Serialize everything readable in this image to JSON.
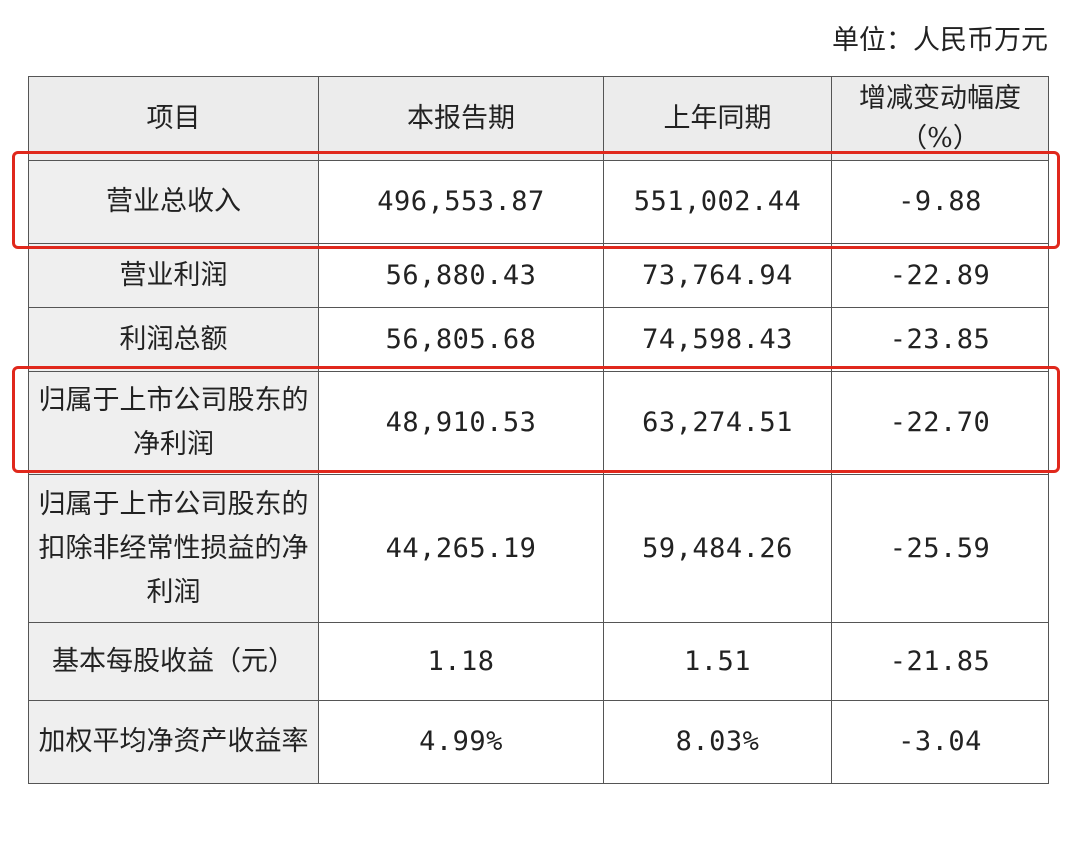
{
  "unit_label": "单位：人民币万元",
  "columns": [
    "项目",
    "本报告期",
    "上年同期",
    "增减变动幅度（%）"
  ],
  "rows": [
    {
      "item": "营业总收入",
      "current": "496,553.87",
      "prior": "551,002.44",
      "change": "-9.88",
      "highlighted": true
    },
    {
      "item": "营业利润",
      "current": "56,880.43",
      "prior": "73,764.94",
      "change": "-22.89",
      "highlighted": false
    },
    {
      "item": "利润总额",
      "current": "56,805.68",
      "prior": "74,598.43",
      "change": "-23.85",
      "highlighted": false
    },
    {
      "item": "归属于上市公司股东的净利润",
      "current": "48,910.53",
      "prior": "63,274.51",
      "change": "-22.70",
      "highlighted": true
    },
    {
      "item": "归属于上市公司股东的扣除非经常性损益的净利润",
      "current": "44,265.19",
      "prior": "59,484.26",
      "change": "-25.59",
      "highlighted": false
    },
    {
      "item": "基本每股收益（元）",
      "current": "1.18",
      "prior": "1.51",
      "change": "-21.85",
      "highlighted": false
    },
    {
      "item": "加权平均净资产收益率",
      "current": "4.99%",
      "prior": "8.03%",
      "change": "-3.04",
      "highlighted": false
    }
  ],
  "highlight_color": "#e0281c"
}
